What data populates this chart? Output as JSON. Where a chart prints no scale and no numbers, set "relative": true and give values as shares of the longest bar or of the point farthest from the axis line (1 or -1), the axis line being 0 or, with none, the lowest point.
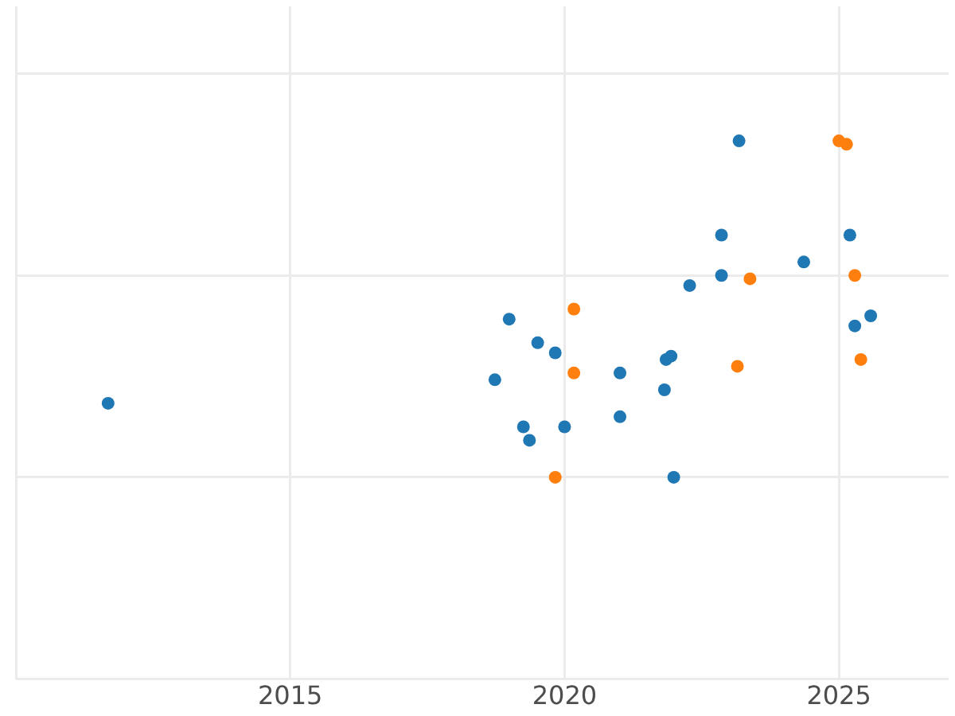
{
  "chart_data": {
    "type": "scatter",
    "relative": true,
    "grid": true,
    "marker": "circle",
    "tick_labels": "x",
    "xlim": [
      2010,
      2027
    ],
    "xticks": [
      {
        "value": 2010,
        "label": null
      },
      2015,
      2020,
      2025
    ],
    "series": [
      {
        "color": "#1f77b4",
        "x": [
          2011.68,
          2018.73,
          2018.99,
          2019.25,
          2019.36,
          2019.51,
          2019.83,
          2020.0,
          2021.01,
          2021.01,
          2021.82,
          2021.85,
          2021.94,
          2021.99,
          2022.28,
          2022.86,
          2022.86,
          2023.18,
          2024.36,
          2025.2,
          2025.29,
          2025.58
        ],
        "values": [
          0.22,
          0.29,
          0.47,
          0.15,
          0.11,
          0.4,
          0.37,
          0.15,
          0.31,
          0.18,
          0.26,
          0.35,
          0.36,
          0.0,
          0.57,
          0.72,
          0.6,
          1.0,
          0.64,
          0.72,
          0.45,
          0.48
        ]
      },
      {
        "color": "#ff7f0e",
        "x": [
          2019.83,
          2020.17,
          2020.17,
          2023.15,
          2023.38,
          2025.0,
          2025.14,
          2025.29,
          2025.4
        ],
        "values": [
          0.0,
          0.5,
          0.31,
          0.33,
          0.59,
          1.0,
          0.99,
          0.6,
          0.35
        ]
      }
    ]
  }
}
